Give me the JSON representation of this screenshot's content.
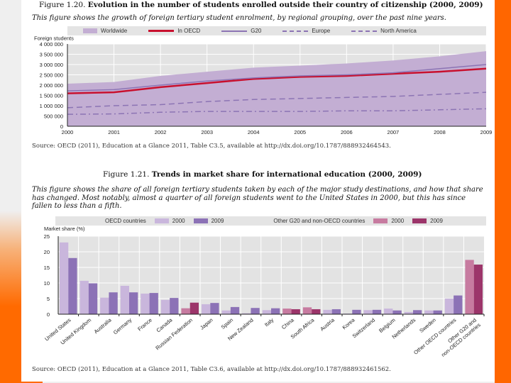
{
  "fig1": {
    "number": "Figure 1.20.",
    "title": "Evolution in the number of students enrolled outside their country of citizenship (2000, 2009)",
    "description": "This figure shows the growth of foreign tertiary student enrolment, by regional grouping, over the past nine years.",
    "source": "Source: OECD (2011), Education at a Glance 2011, Table C3.5, available at http://dx.doi.org/10.1787/888932464543."
  },
  "fig2": {
    "number": "Figure 1.21.",
    "title": "Trends in market share for international education (2000, 2009)",
    "description_lines": [
      "This figure shows the share of all foreign tertiary students taken by each of the major study destinations, and how that share",
      "has changed. Most notably, almost a quarter of all foreign students went to the United States in 2000, but this has since",
      "fallen to less than a fifth."
    ],
    "source": "Source: OECD (2011), Education at a Glance 2011, Table C3.6, available at http://dx.doi.org/10.1787/888932461562.",
    "legend": {
      "group1": "OECD countries",
      "group2": "Other G20 and non-OECD countries",
      "y2000": "2000",
      "y2009": "2009"
    }
  },
  "chart_data": [
    {
      "type": "line",
      "ylabel": "Foreign students",
      "ylim": [
        0,
        4000000
      ],
      "yticks": [
        "0",
        "500 000",
        "1 000 000",
        "1 500 000",
        "2 000 000",
        "2 500 000",
        "3 000 000",
        "3 500 000",
        "4 000 000"
      ],
      "x": [
        "2000",
        "2001",
        "2002",
        "2003",
        "2004",
        "2005",
        "2006",
        "2007",
        "2008",
        "2009"
      ],
      "grid": true,
      "legend": "top",
      "series": [
        {
          "name": "Worldwide",
          "style": "area",
          "color": "#c3aed3",
          "values": [
            2070000,
            2150000,
            2450000,
            2650000,
            2850000,
            2950000,
            3050000,
            3200000,
            3400000,
            3650000
          ]
        },
        {
          "name": "In OECD",
          "style": "solid",
          "color": "#c8102e",
          "values": [
            1600000,
            1650000,
            1900000,
            2100000,
            2300000,
            2400000,
            2450000,
            2550000,
            2650000,
            2800000
          ]
        },
        {
          "name": "G20",
          "style": "solid",
          "color": "#8c74b4",
          "values": [
            1720000,
            1780000,
            2000000,
            2200000,
            2350000,
            2450000,
            2500000,
            2600000,
            2800000,
            3000000
          ]
        },
        {
          "name": "Europe",
          "style": "dashed",
          "color": "#8c74b4",
          "values": [
            900000,
            1000000,
            1050000,
            1200000,
            1300000,
            1350000,
            1400000,
            1450000,
            1550000,
            1650000
          ]
        },
        {
          "name": "North America",
          "style": "dashdot",
          "color": "#8c74b4",
          "values": [
            580000,
            600000,
            680000,
            720000,
            720000,
            720000,
            750000,
            750000,
            800000,
            850000
          ]
        }
      ]
    },
    {
      "type": "bar",
      "ylabel": "Market share (%)",
      "ylim": [
        0,
        25
      ],
      "yticks": [
        "0",
        "5",
        "10",
        "15",
        "20",
        "25"
      ],
      "grid": true,
      "legend": "top",
      "colors": {
        "oecd2000": "#c9b6dc",
        "oecd2009": "#8c72b6",
        "other2000": "#c77ba0",
        "other2009": "#9c356a"
      },
      "categories": [
        "United States",
        "United Kingdom",
        "Australia",
        "Germany",
        "France",
        "Canada",
        "Russian Federation",
        "Japan",
        "Spain",
        "New Zealand",
        "Italy",
        "China",
        "South Africa",
        "Austria",
        "Korea",
        "Switzerland",
        "Belgium",
        "Netherlands",
        "Sweden",
        "Other OECD countries",
        "Other G20 and non-OECD countries"
      ],
      "group": [
        "oecd",
        "oecd",
        "oecd",
        "oecd",
        "oecd",
        "oecd",
        "other",
        "oecd",
        "oecd",
        "oecd",
        "oecd",
        "other",
        "other",
        "oecd",
        "oecd",
        "oecd",
        "oecd",
        "oecd",
        "oecd",
        "oecd",
        "other"
      ],
      "series": [
        {
          "name": "2000",
          "values": [
            23,
            10.7,
            5.3,
            9.1,
            6.6,
            4.6,
            1.9,
            3.2,
            1.2,
            0.3,
            1.3,
            1.8,
            2.2,
            1.4,
            0.2,
            1.3,
            1.8,
            0.7,
            1.2,
            5.0,
            17.4
          ]
        },
        {
          "name": "2009",
          "values": [
            18,
            9.9,
            7.0,
            7.0,
            6.8,
            5.2,
            3.7,
            3.6,
            2.3,
            2.0,
            1.9,
            1.6,
            1.6,
            1.6,
            1.4,
            1.4,
            1.2,
            1.3,
            1.2,
            6.0,
            15.9
          ]
        }
      ]
    }
  ]
}
